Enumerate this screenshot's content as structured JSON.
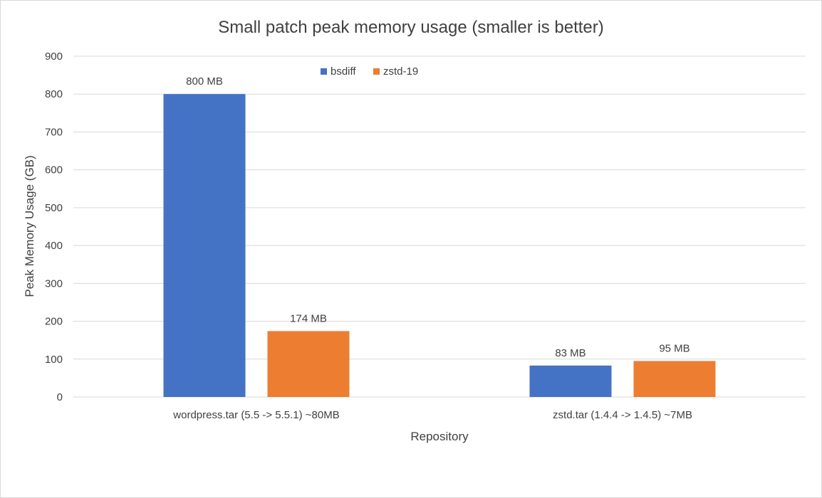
{
  "chart_data": {
    "type": "bar",
    "title": "Small patch peak memory usage (smaller is better)",
    "xlabel": "Repository",
    "ylabel": "Peak Memory Usage (GB)",
    "ylim": [
      0,
      900
    ],
    "yticks": [
      0,
      100,
      200,
      300,
      400,
      500,
      600,
      700,
      800,
      900
    ],
    "grid": true,
    "legend_position": "top-center",
    "categories": [
      "wordpress.tar (5.5 -> 5.5.1) ~80MB",
      "zstd.tar (1.4.4 -> 1.4.5) ~7MB"
    ],
    "series": [
      {
        "name": "bsdiff",
        "color": "#4472c4",
        "values": [
          800,
          83
        ],
        "labels": [
          "800 MB",
          "83 MB"
        ]
      },
      {
        "name": "zstd-19",
        "color": "#ed7d31",
        "values": [
          174,
          95
        ],
        "labels": [
          "174 MB",
          "95 MB"
        ]
      }
    ]
  }
}
